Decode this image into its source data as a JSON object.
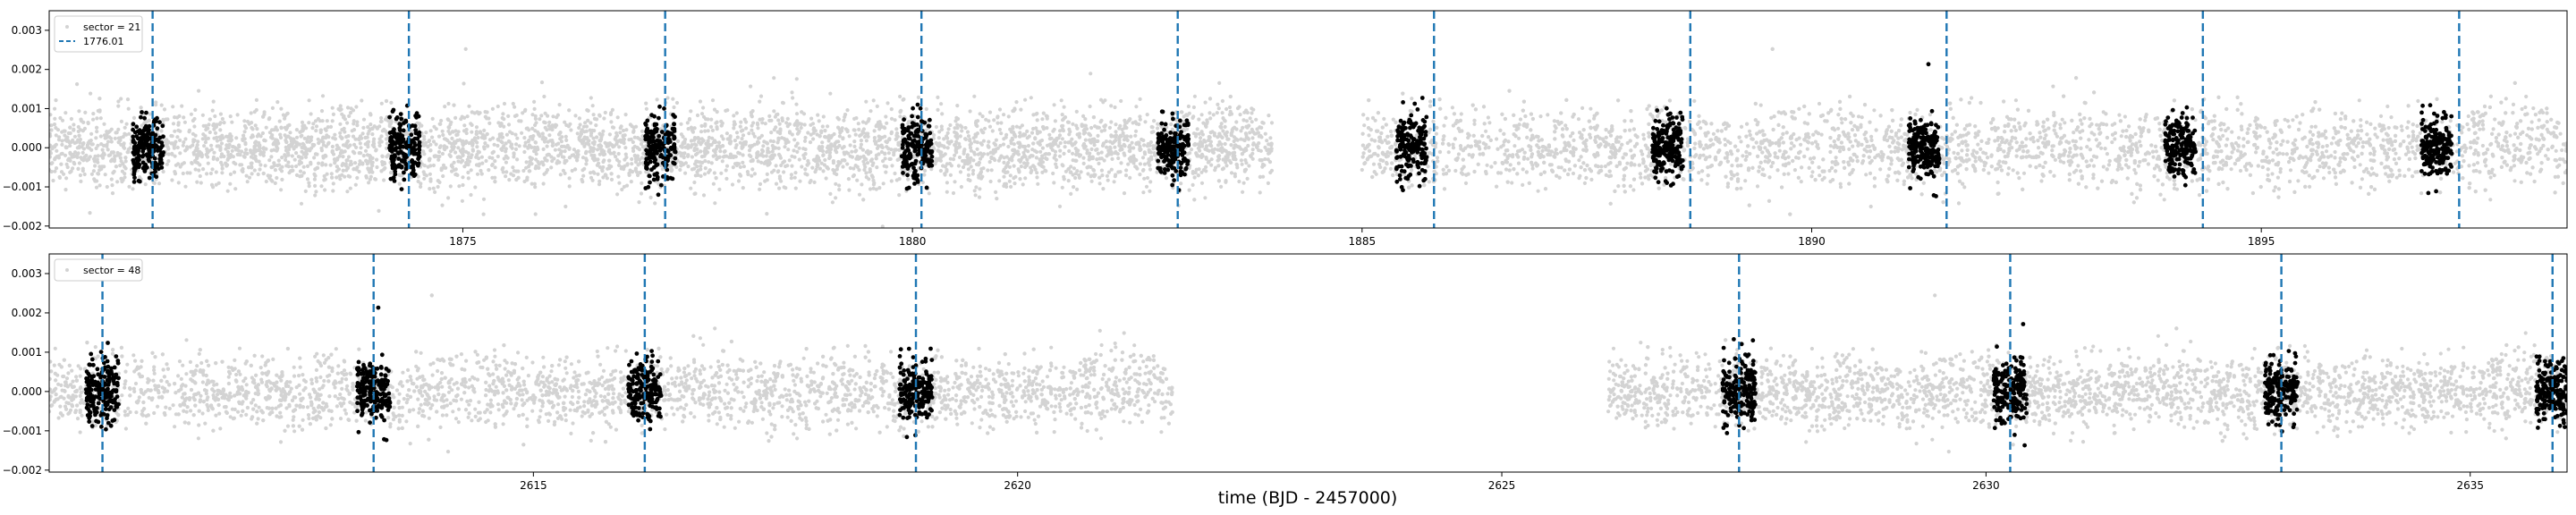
{
  "figure": {
    "xlabel": "time (BJD - 2457000)"
  },
  "colors": {
    "background_points": "#d3d3d3",
    "in_transit_points": "#000000",
    "transit_marker": "#1f77b4",
    "axes": "#000000"
  },
  "chart_data": [
    {
      "type": "scatter",
      "title": "",
      "xlabel": "",
      "ylabel": "",
      "xlim": [
        1870.4,
        1898.4
      ],
      "ylim": [
        -0.00205,
        0.0035
      ],
      "xticks": [
        1875,
        1880,
        1885,
        1890,
        1895
      ],
      "xtick_labels": [
        "1875",
        "1880",
        "1885",
        "1890",
        "1895"
      ],
      "yticks": [
        -0.002,
        -0.001,
        0.0,
        0.001,
        0.002,
        0.003
      ],
      "ytick_labels": [
        "−0.002",
        "−0.001",
        "0.000",
        "0.001",
        "0.002",
        "0.003"
      ],
      "grid": false,
      "legend_position": "top-left",
      "legend": [
        {
          "label": "sector = 21",
          "kind": "points"
        },
        {
          "label": "1776.01",
          "kind": "dashed-line"
        }
      ],
      "series": [
        {
          "name": "sector = 21",
          "kind": "background",
          "x_ranges": [
            [
              1870.4,
              1884.0
            ],
            [
              1885.0,
              1898.4
            ]
          ],
          "y_mean": 0.0,
          "y_scatter": 0.0005
        },
        {
          "name": "in-transit",
          "kind": "transit-points",
          "x_centers": [
            1871.5,
            1874.35,
            1877.2,
            1880.05,
            1882.9,
            1885.55,
            1888.4,
            1891.25,
            1894.1,
            1896.95
          ],
          "half_width": 0.17,
          "y_scatter": 0.0004
        },
        {
          "name": "1776.01",
          "kind": "transit-markers",
          "x": [
            1871.55,
            1874.4,
            1877.25,
            1880.1,
            1882.95,
            1885.8,
            1888.65,
            1891.5,
            1894.35,
            1897.2
          ]
        }
      ]
    },
    {
      "type": "scatter",
      "title": "",
      "xlabel": "time (BJD - 2457000)",
      "ylabel": "",
      "xlim": [
        2610.0,
        2636.0
      ],
      "ylim": [
        -0.00205,
        0.0035
      ],
      "xticks": [
        2615,
        2620,
        2625,
        2630,
        2635
      ],
      "xtick_labels": [
        "2615",
        "2620",
        "2625",
        "2630",
        "2635"
      ],
      "yticks": [
        -0.002,
        -0.001,
        0.0,
        0.001,
        0.002,
        0.003
      ],
      "ytick_labels": [
        "−0.002",
        "−0.001",
        "0.000",
        "0.001",
        "0.002",
        "0.003"
      ],
      "grid": false,
      "legend_position": "top-left",
      "legend": [
        {
          "label": "sector = 48",
          "kind": "points"
        }
      ],
      "series": [
        {
          "name": "sector = 48",
          "kind": "background",
          "x_ranges": [
            [
              2610.0,
              2621.6
            ],
            [
              2626.1,
              2636.0
            ]
          ],
          "y_mean": 0.0,
          "y_scatter": 0.00045
        },
        {
          "name": "in-transit",
          "kind": "transit-points",
          "x_centers": [
            2610.55,
            2613.35,
            2616.15,
            2618.95,
            2627.45,
            2630.25,
            2633.05,
            2635.85
          ],
          "half_width": 0.17,
          "y_scatter": 0.0004
        },
        {
          "name": "transit-markers",
          "kind": "transit-markers",
          "x": [
            2610.55,
            2613.35,
            2616.15,
            2618.95,
            2627.45,
            2630.25,
            2633.05,
            2635.85
          ]
        }
      ]
    }
  ]
}
